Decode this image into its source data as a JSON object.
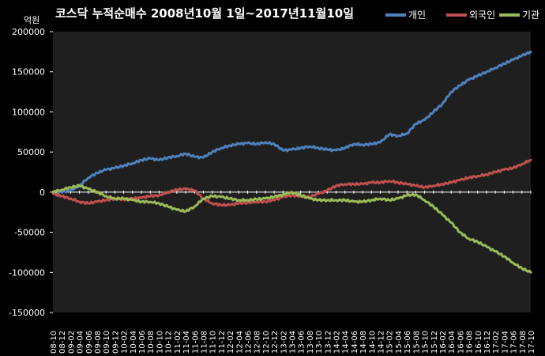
{
  "chart_data": {
    "type": "line",
    "title": "코스닥 누적순매수 2008년10월 1일~2017년11월10일",
    "ylabel": "억원",
    "xlabel": "",
    "ylim": [
      -150000,
      200000
    ],
    "yticks": [
      "200000",
      "150000",
      "100000",
      "50000",
      "0",
      "-50000",
      "-100000",
      "-150000"
    ],
    "ytick_values": [
      200000,
      150000,
      100000,
      50000,
      0,
      -50000,
      -100000,
      -150000
    ],
    "categories": [
      "08-10",
      "08-12",
      "09-02",
      "09-04",
      "09-06",
      "09-08",
      "09-10",
      "09-12",
      "10-02",
      "10-04",
      "10-06",
      "10-08",
      "10-10",
      "10-12",
      "11-02",
      "11-04",
      "11-06",
      "11-08",
      "11-10",
      "11-12",
      "12-02",
      "12-04",
      "12-06",
      "12-08",
      "12-10",
      "12-12",
      "13-02",
      "13-04",
      "13-06",
      "13-08",
      "13-10",
      "13-12",
      "14-02",
      "14-04",
      "14-06",
      "14-08",
      "14-10",
      "14-12",
      "15-02",
      "15-04",
      "15-06",
      "15-08",
      "15-10",
      "15-12",
      "16-02",
      "16-04",
      "16-06",
      "16-08",
      "16-10",
      "16-12",
      "17-02",
      "17-04",
      "17-06",
      "17-08",
      "17-10"
    ],
    "grid": false,
    "legend": "top-right",
    "plot_background": "#1f1f1f",
    "series": [
      {
        "name": "개인",
        "color": "#4f81bd",
        "values": [
          0,
          0,
          2000,
          8000,
          18000,
          24000,
          28000,
          30000,
          33000,
          36000,
          40000,
          42000,
          40000,
          43000,
          45000,
          48000,
          44000,
          43000,
          50000,
          55000,
          58000,
          60000,
          61000,
          60000,
          62000,
          60000,
          52000,
          53000,
          55000,
          57000,
          55000,
          53000,
          52000,
          55000,
          60000,
          59000,
          60000,
          62000,
          72000,
          70000,
          73000,
          85000,
          90000,
          100000,
          110000,
          125000,
          133000,
          140000,
          145000,
          150000,
          155000,
          160000,
          165000,
          170000,
          175000
        ]
      },
      {
        "name": "외국인",
        "color": "#c0504d",
        "values": [
          -2000,
          -5000,
          -8000,
          -12000,
          -14000,
          -12000,
          -10000,
          -8000,
          -9000,
          -8000,
          -7000,
          -5000,
          -4000,
          0,
          3000,
          4000,
          2000,
          -8000,
          -14000,
          -16000,
          -16000,
          -14000,
          -13000,
          -12000,
          -12000,
          -10000,
          -6000,
          -4000,
          -5000,
          -6000,
          -2000,
          2000,
          8000,
          10000,
          10000,
          10000,
          12000,
          12000,
          14000,
          12000,
          10000,
          8000,
          6000,
          8000,
          10000,
          12000,
          15000,
          18000,
          20000,
          22000,
          25000,
          28000,
          30000,
          35000,
          40000
        ]
      },
      {
        "name": "기관",
        "color": "#9bbb59",
        "values": [
          0,
          3000,
          6000,
          8000,
          4000,
          0,
          -5000,
          -8000,
          -8000,
          -10000,
          -12000,
          -12000,
          -14000,
          -18000,
          -22000,
          -24000,
          -18000,
          -8000,
          -5000,
          -6000,
          -8000,
          -10000,
          -10000,
          -9000,
          -8000,
          -6000,
          -3000,
          0,
          -4000,
          -8000,
          -10000,
          -10000,
          -10000,
          -10000,
          -12000,
          -12000,
          -10000,
          -8000,
          -10000,
          -8000,
          -4000,
          -3000,
          -10000,
          -18000,
          -28000,
          -38000,
          -50000,
          -58000,
          -62000,
          -68000,
          -74000,
          -80000,
          -88000,
          -95000,
          -100000
        ]
      }
    ]
  }
}
